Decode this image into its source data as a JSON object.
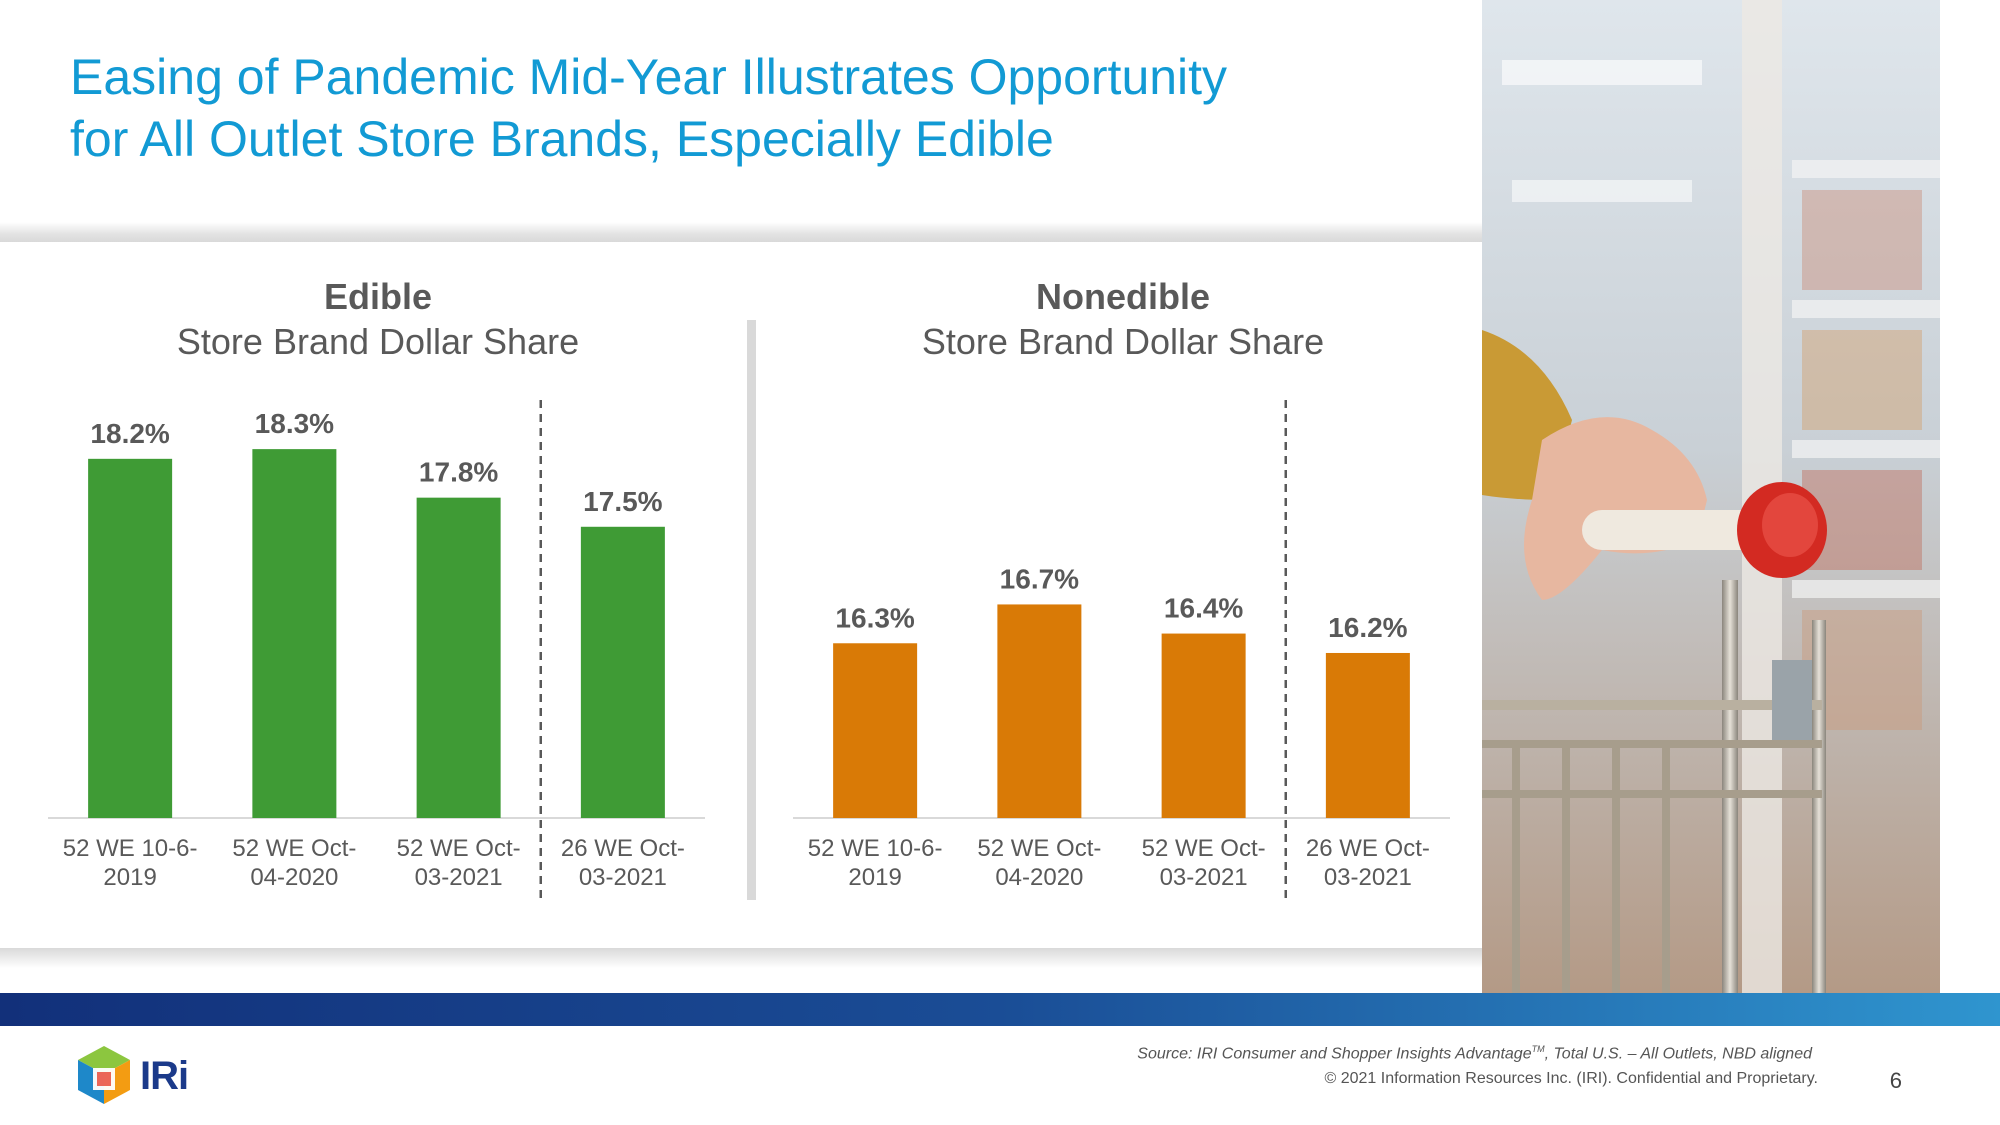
{
  "slide": {
    "title_line1": "Easing of Pandemic Mid-Year Illustrates Opportunity",
    "title_line2": "for All Outlet Store Brands, Especially Edible",
    "source_prefix": "Source: IRI Consumer and Shopper Insights Advantage",
    "source_tm": "TM",
    "source_suffix": ", Total U.S. – All Outlets, NBD aligned",
    "copyright": "© 2021 Information Resources Inc. (IRI). Confidential and Proprietary.",
    "page_number": "6",
    "logo_text": "IRi"
  },
  "colors": {
    "title": "#129ad4",
    "edible_bar": "#3f9b35",
    "nonedible_bar": "#d97a06",
    "label_text": "#595959"
  },
  "chart_data": [
    {
      "type": "bar",
      "title": "Edible",
      "subtitle": "Store Brand Dollar Share",
      "categories": [
        "52 WE 10-6-2019",
        "52 WE Oct-04-2020",
        "52 WE Oct-03-2021",
        "26 WE Oct-03-2021"
      ],
      "category_lines": [
        [
          "52 WE 10-6-",
          "2019"
        ],
        [
          "52 WE Oct-",
          "04-2020"
        ],
        [
          "52 WE Oct-",
          "03-2021"
        ],
        [
          "26 WE Oct-",
          "03-2021"
        ]
      ],
      "values": [
        18.2,
        18.3,
        17.8,
        17.5
      ],
      "data_labels": [
        "18.2%",
        "18.3%",
        "17.8%",
        "17.5%"
      ],
      "unit": "%",
      "ylim": [
        14.5,
        18.6
      ],
      "grid": false,
      "separator_before_index": 3,
      "color": "#3f9b35"
    },
    {
      "type": "bar",
      "title": "Nonedible",
      "subtitle": "Store Brand Dollar Share",
      "categories": [
        "52 WE 10-6-2019",
        "52 WE Oct-04-2020",
        "52 WE Oct-03-2021",
        "26 WE Oct-03-2021"
      ],
      "category_lines": [
        [
          "52 WE 10-6-",
          "2019"
        ],
        [
          "52 WE Oct-",
          "04-2020"
        ],
        [
          "52 WE Oct-",
          "03-2021"
        ],
        [
          "26 WE Oct-",
          "03-2021"
        ]
      ],
      "values": [
        16.3,
        16.7,
        16.4,
        16.2
      ],
      "data_labels": [
        "16.3%",
        "16.7%",
        "16.4%",
        "16.2%"
      ],
      "unit": "%",
      "ylim": [
        14.5,
        18.6
      ],
      "grid": false,
      "separator_before_index": 3,
      "color": "#d97a06"
    }
  ]
}
